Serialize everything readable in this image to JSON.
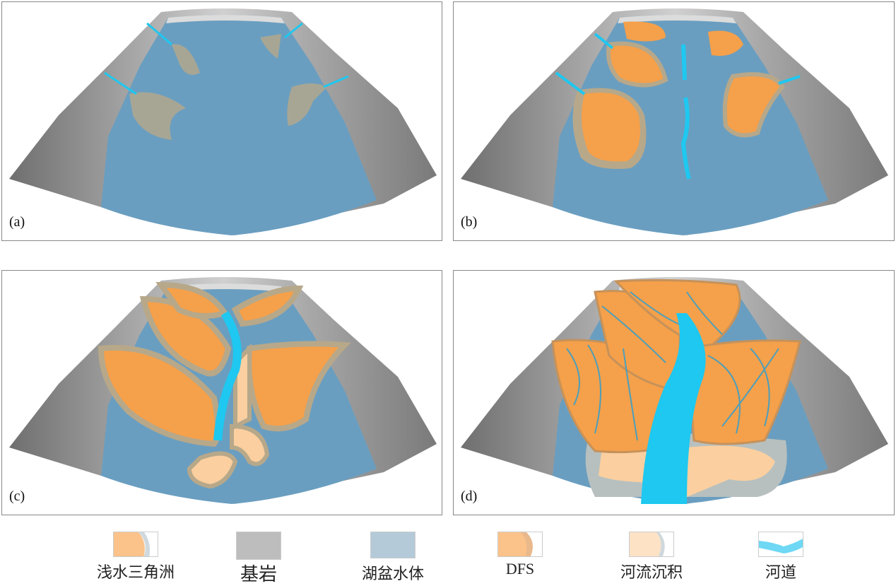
{
  "panels": [
    {
      "label": "(a)"
    },
    {
      "label": "(b)"
    },
    {
      "label": "(c)"
    },
    {
      "label": "(d)"
    }
  ],
  "legend": [
    {
      "label": "浅水三角洲",
      "icon": "shallow-delta-swatch"
    },
    {
      "label": "基岩",
      "icon": "bedrock-swatch"
    },
    {
      "label": "湖盆水体",
      "icon": "lake-water-swatch"
    },
    {
      "label": "DFS",
      "icon": "dfs-swatch"
    },
    {
      "label": "河流沉积",
      "icon": "fluvial-deposit-swatch"
    },
    {
      "label": "河道",
      "icon": "channel-swatch"
    }
  ],
  "colors": {
    "bedrock": "#9a9a9a",
    "lake": "#6a9ec0",
    "delta": "#f5a04a",
    "fluvial": "#fbcf9f",
    "channel": "#1ec8f0",
    "fringe": "#b7a88a"
  }
}
